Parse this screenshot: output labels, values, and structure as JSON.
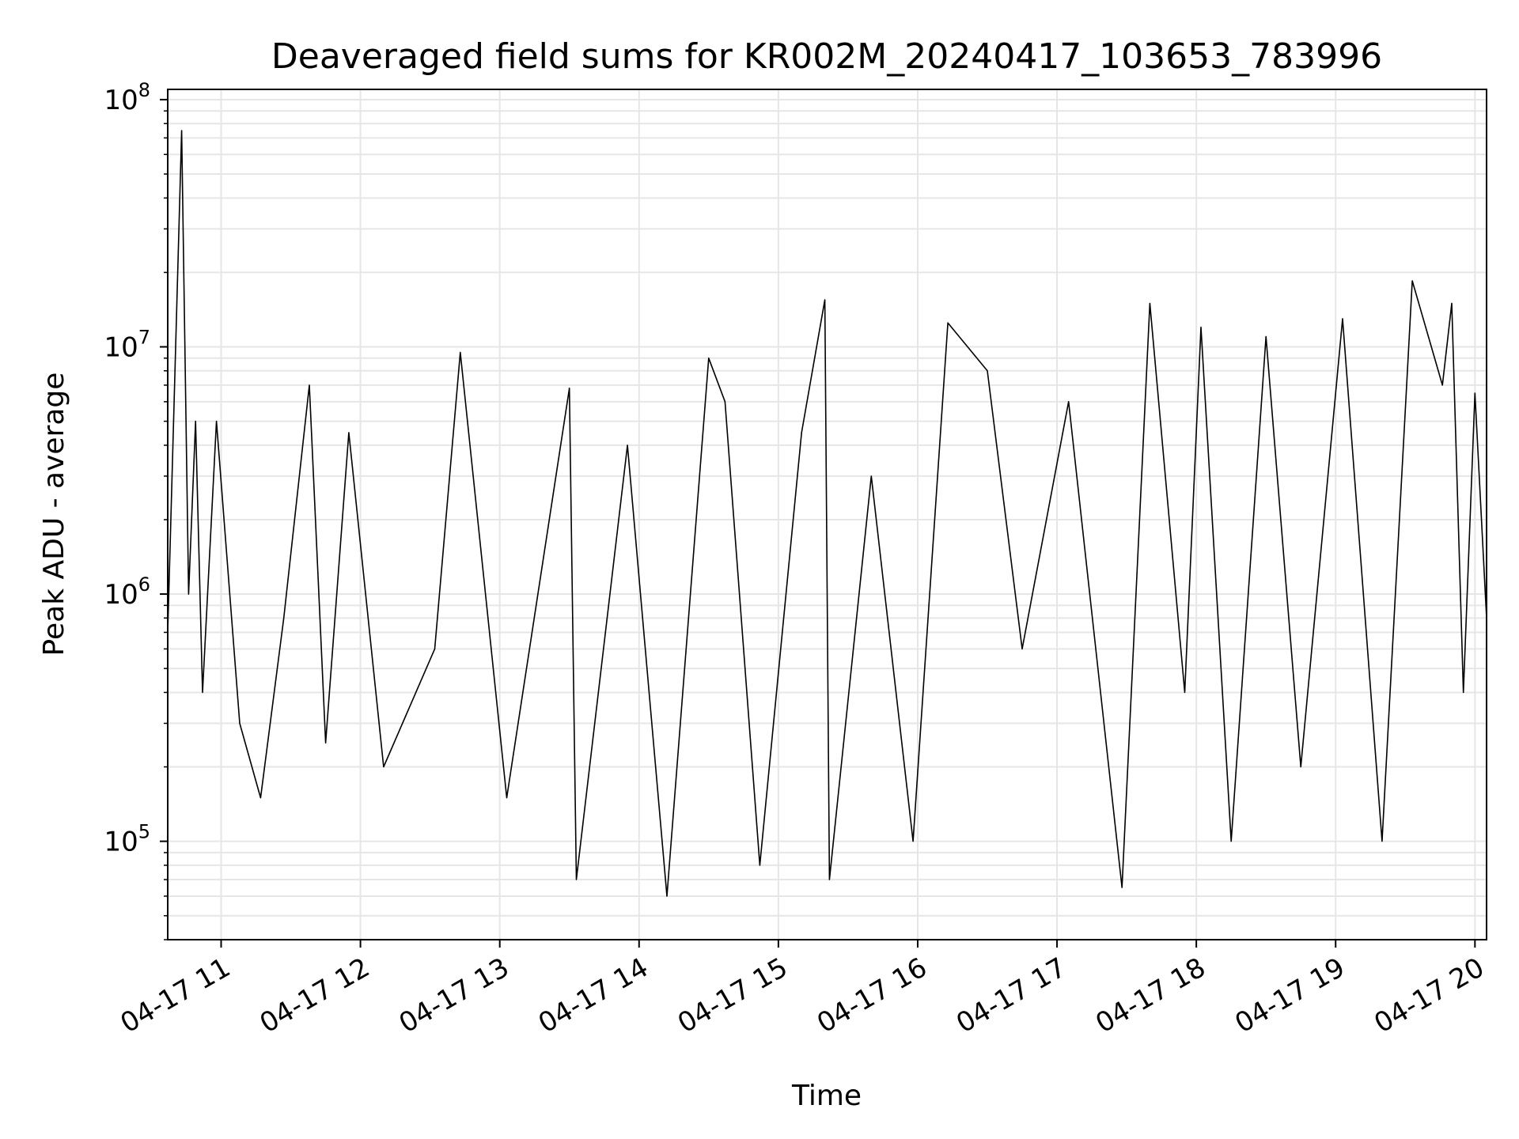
{
  "chart_data": {
    "type": "line",
    "title": "Deaveraged field sums for KR002M_20240417_103653_783996",
    "xlabel": "Time",
    "ylabel": "Peak ADU - average",
    "yscale": "log",
    "ylim": [
      40000,
      110000000
    ],
    "xlim": [
      "2024-04-17 10:37",
      "2024-04-17 20:05"
    ],
    "grid": true,
    "line_color": "#000000",
    "grid_color": "#e6e6e6",
    "x_tick_labels": [
      "04-17 11",
      "04-17 12",
      "04-17 13",
      "04-17 14",
      "04-17 15",
      "04-17 16",
      "04-17 17",
      "04-17 18",
      "04-17 19",
      "04-17 20"
    ],
    "x_tick_times": [
      "2024-04-17 11:00",
      "2024-04-17 12:00",
      "2024-04-17 13:00",
      "2024-04-17 14:00",
      "2024-04-17 15:00",
      "2024-04-17 16:00",
      "2024-04-17 17:00",
      "2024-04-17 18:00",
      "2024-04-17 19:00",
      "2024-04-17 20:00"
    ],
    "y_ticks": [
      {
        "base": "10",
        "exp": "5",
        "value": 100000
      },
      {
        "base": "10",
        "exp": "6",
        "value": 1000000
      },
      {
        "base": "10",
        "exp": "7",
        "value": 10000000
      },
      {
        "base": "10",
        "exp": "8",
        "value": 100000000
      }
    ],
    "series": [
      {
        "x": [
          "2024-04-17 10:37",
          "2024-04-17 10:43",
          "2024-04-17 10:46",
          "2024-04-17 10:49",
          "2024-04-17 10:52",
          "2024-04-17 10:58",
          "2024-04-17 11:08",
          "2024-04-17 11:17",
          "2024-04-17 11:27",
          "2024-04-17 11:38",
          "2024-04-17 11:45",
          "2024-04-17 11:55",
          "2024-04-17 12:10",
          "2024-04-17 12:32",
          "2024-04-17 12:43",
          "2024-04-17 13:03",
          "2024-04-17 13:30",
          "2024-04-17 13:33",
          "2024-04-17 13:55",
          "2024-04-17 14:12",
          "2024-04-17 14:30",
          "2024-04-17 14:37",
          "2024-04-17 14:52",
          "2024-04-17 15:10",
          "2024-04-17 15:20",
          "2024-04-17 15:22",
          "2024-04-17 15:40",
          "2024-04-17 15:58",
          "2024-04-17 16:13",
          "2024-04-17 16:30",
          "2024-04-17 16:45",
          "2024-04-17 17:05",
          "2024-04-17 17:28",
          "2024-04-17 17:40",
          "2024-04-17 17:55",
          "2024-04-17 18:02",
          "2024-04-17 18:15",
          "2024-04-17 18:30",
          "2024-04-17 18:45",
          "2024-04-17 19:03",
          "2024-04-17 19:20",
          "2024-04-17 19:33",
          "2024-04-17 19:46",
          "2024-04-17 19:50",
          "2024-04-17 19:55",
          "2024-04-17 20:00",
          "2024-04-17 20:05"
        ],
        "y": [
          700000,
          75000000,
          1000000,
          5000000,
          400000,
          5000000,
          300000,
          150000,
          800000,
          7000000,
          250000,
          4500000,
          200000,
          600000,
          9500000,
          150000,
          6800000,
          70000,
          4000000,
          60000,
          9000000,
          6000000,
          80000,
          4500000,
          15500000,
          70000,
          3000000,
          100000,
          12500000,
          8000000,
          600000,
          6000000,
          65000,
          15000000,
          400000,
          12000000,
          100000,
          11000000,
          200000,
          13000000,
          100000,
          18500000,
          7000000,
          15000000,
          400000,
          6500000,
          800000
        ]
      }
    ]
  }
}
